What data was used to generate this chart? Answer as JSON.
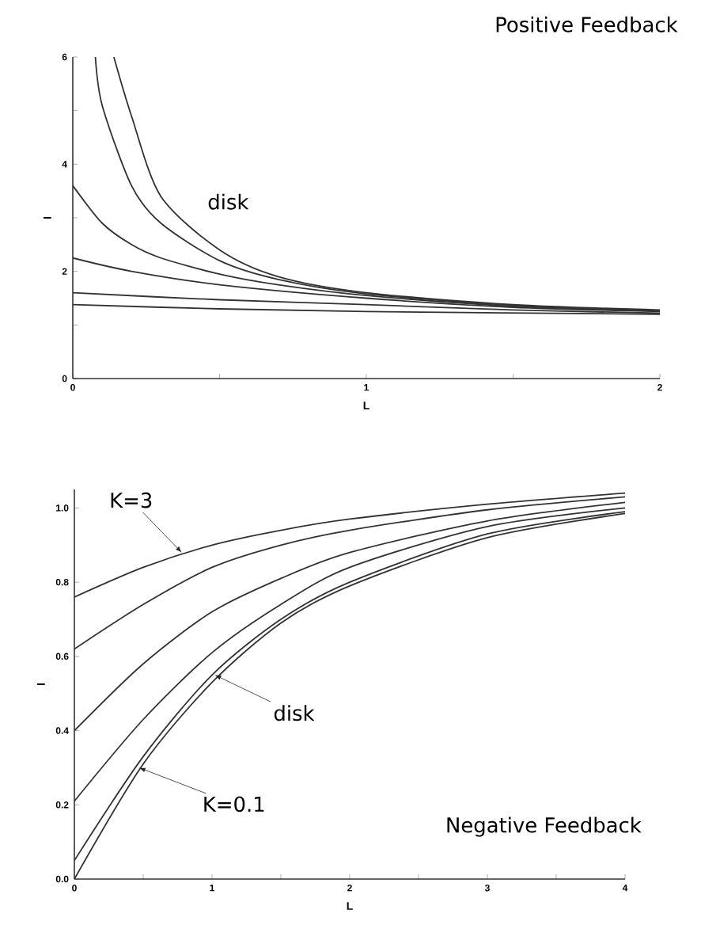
{
  "chart_data": [
    {
      "type": "line",
      "title": "Positive Feedback",
      "xlabel": "L",
      "ylabel": "I",
      "xlim": [
        0,
        2
      ],
      "ylim": [
        0,
        6
      ],
      "xticks": [
        0,
        {
          "value": 0.5,
          "label": null
        },
        1,
        {
          "value": 1.5,
          "label": null
        },
        2
      ],
      "yticks": [
        0,
        {
          "value": 1,
          "label": null
        },
        2,
        {
          "value": 3,
          "label": null
        },
        4,
        {
          "value": 5,
          "label": null
        },
        6
      ],
      "marker": "none",
      "line_style": "solid",
      "annotations": [
        "disk"
      ],
      "series": [
        {
          "color": "#333333",
          "x": [
            0.14,
            0.2,
            0.3,
            0.5,
            0.7,
            1,
            1.5,
            2
          ],
          "values": [
            6,
            4.9,
            3.4,
            2.4,
            1.9,
            1.6,
            1.38,
            1.28
          ]
        },
        {
          "color": "#333333",
          "x": [
            0.077,
            0.1,
            0.2,
            0.3,
            0.5,
            0.7,
            1,
            1.5,
            2
          ],
          "values": [
            6,
            5.1,
            3.6,
            2.9,
            2.2,
            1.85,
            1.58,
            1.37,
            1.27
          ]
        },
        {
          "color": "#333333",
          "x": [
            0,
            0.1,
            0.2,
            0.3,
            0.5,
            0.7,
            1,
            1.5,
            2
          ],
          "values": [
            3.6,
            2.9,
            2.5,
            2.25,
            1.95,
            1.75,
            1.55,
            1.35,
            1.26
          ]
        },
        {
          "color": "#333333",
          "x": [
            0,
            0.2,
            0.5,
            1,
            1.5,
            2
          ],
          "values": [
            2.25,
            2.0,
            1.75,
            1.5,
            1.33,
            1.25
          ]
        },
        {
          "color": "#333333",
          "x": [
            0,
            0.5,
            1,
            1.5,
            2
          ],
          "values": [
            1.6,
            1.47,
            1.38,
            1.28,
            1.22
          ]
        },
        {
          "color": "#333333",
          "x": [
            0,
            0.5,
            1,
            2
          ],
          "values": [
            1.38,
            1.3,
            1.25,
            1.2
          ]
        }
      ]
    },
    {
      "type": "line",
      "title": "Negative Feedback",
      "xlabel": "L",
      "ylabel": "I",
      "xlim": [
        0,
        4
      ],
      "ylim": [
        0,
        1.05
      ],
      "xticks": [
        0,
        {
          "value": 0.5,
          "label": null
        },
        1,
        {
          "value": 1.5,
          "label": null
        },
        2,
        {
          "value": 2.5,
          "label": null
        },
        3,
        {
          "value": 3.5,
          "label": null
        },
        4
      ],
      "yticks": [
        {
          "value": 0,
          "label": "0.0"
        },
        0.2,
        0.4,
        0.6,
        0.8,
        {
          "value": 1,
          "label": "1.0"
        }
      ],
      "marker": "none",
      "line_style": "solid",
      "x": [
        0,
        0.5,
        1,
        1.5,
        2,
        3,
        4
      ],
      "annotations": [
        {
          "text": "K=3",
          "x": 0.78,
          "y": 0.88
        },
        {
          "text": "disk",
          "x": 1.02,
          "y": 0.55
        },
        {
          "text": "K=0.1",
          "x": 0.47,
          "y": 0.3
        }
      ],
      "series": [
        {
          "color": "#333333",
          "values": [
            0.76,
            0.84,
            0.9,
            0.94,
            0.97,
            1.01,
            1.04
          ]
        },
        {
          "color": "#333333",
          "values": [
            0.62,
            0.74,
            0.84,
            0.9,
            0.94,
            0.995,
            1.03
          ]
        },
        {
          "color": "#333333",
          "values": [
            0.4,
            0.58,
            0.72,
            0.81,
            0.88,
            0.965,
            1.015
          ]
        },
        {
          "color": "#333333",
          "values": [
            0.21,
            0.43,
            0.61,
            0.74,
            0.84,
            0.95,
            1.0
          ]
        },
        {
          "color": "#333333",
          "values": [
            0.05,
            0.33,
            0.55,
            0.7,
            0.8,
            0.93,
            0.99
          ]
        },
        {
          "color": "#333333",
          "values": [
            0,
            0.31,
            0.53,
            0.69,
            0.79,
            0.92,
            0.985
          ]
        }
      ]
    }
  ]
}
